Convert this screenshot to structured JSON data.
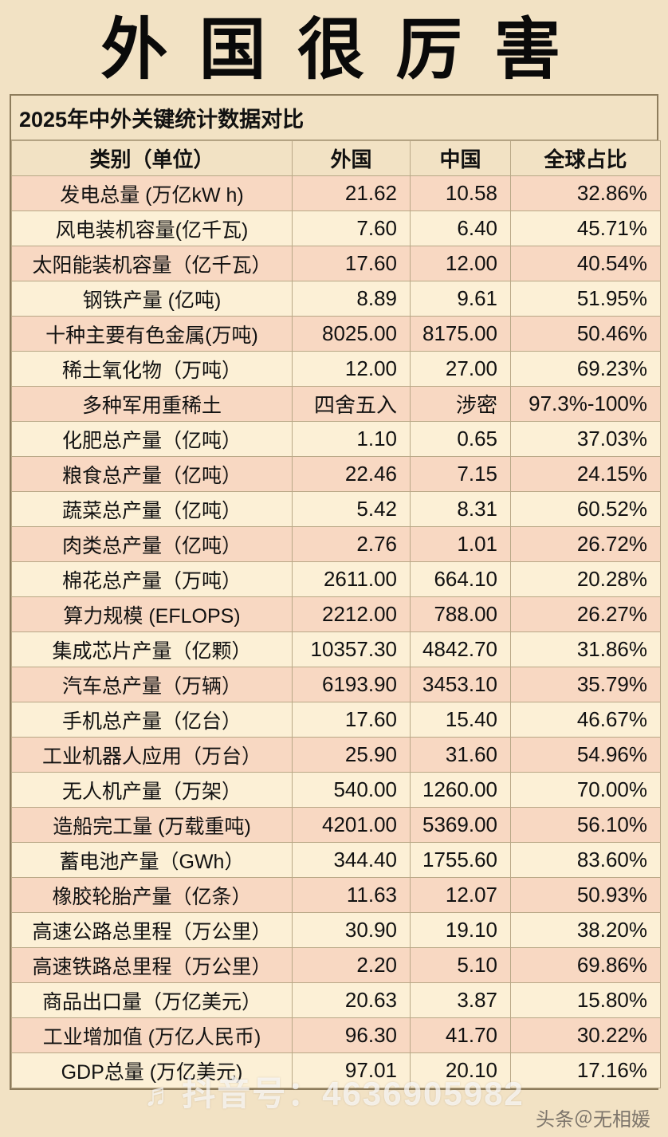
{
  "page": {
    "title": "外 国 很 厉 害"
  },
  "chart_data": {
    "type": "table",
    "title": "2025年中外关键统计数据对比",
    "columns": [
      "类别（单位）",
      "外国",
      "中国",
      "全球占比"
    ],
    "rows": [
      [
        "发电总量 (万亿kW h)",
        "21.62",
        "10.58",
        "32.86%"
      ],
      [
        "风电装机容量(亿千瓦)",
        "7.60",
        "6.40",
        "45.71%"
      ],
      [
        "太阳能装机容量（亿千瓦）",
        "17.60",
        "12.00",
        "40.54%"
      ],
      [
        "钢铁产量 (亿吨)",
        "8.89",
        "9.61",
        "51.95%"
      ],
      [
        "十种主要有色金属(万吨)",
        "8025.00",
        "8175.00",
        "50.46%"
      ],
      [
        "稀土氧化物（万吨）",
        "12.00",
        "27.00",
        "69.23%"
      ],
      [
        "多种军用重稀土",
        "四舍五入",
        "涉密",
        "97.3%-100%"
      ],
      [
        "化肥总产量（亿吨）",
        "1.10",
        "0.65",
        "37.03%"
      ],
      [
        "粮食总产量（亿吨）",
        "22.46",
        "7.15",
        "24.15%"
      ],
      [
        "蔬菜总产量（亿吨）",
        "5.42",
        "8.31",
        "60.52%"
      ],
      [
        "肉类总产量（亿吨）",
        "2.76",
        "1.01",
        "26.72%"
      ],
      [
        "棉花总产量（万吨）",
        "2611.00",
        "664.10",
        "20.28%"
      ],
      [
        "算力规模 (EFLOPS)",
        "2212.00",
        "788.00",
        "26.27%"
      ],
      [
        "集成芯片产量（亿颗）",
        "10357.30",
        "4842.70",
        "31.86%"
      ],
      [
        "汽车总产量（万辆）",
        "6193.90",
        "3453.10",
        "35.79%"
      ],
      [
        "手机总产量（亿台）",
        "17.60",
        "15.40",
        "46.67%"
      ],
      [
        "工业机器人应用（万台）",
        "25.90",
        "31.60",
        "54.96%"
      ],
      [
        "无人机产量（万架）",
        "540.00",
        "1260.00",
        "70.00%"
      ],
      [
        "造船完工量 (万载重吨)",
        "4201.00",
        "5369.00",
        "56.10%"
      ],
      [
        "蓄电池产量（GWh）",
        "344.40",
        "1755.60",
        "83.60%"
      ],
      [
        "橡胶轮胎产量（亿条）",
        "11.63",
        "12.07",
        "50.93%"
      ],
      [
        "高速公路总里程（万公里）",
        "30.90",
        "19.10",
        "38.20%"
      ],
      [
        "高速铁路总里程（万公里）",
        "2.20",
        "5.10",
        "69.86%"
      ],
      [
        "商品出口量（万亿美元）",
        "20.63",
        "3.87",
        "15.80%"
      ],
      [
        "工业增加值 (万亿人民币)",
        "96.30",
        "41.70",
        "30.22%"
      ],
      [
        "GDP总量 (万亿美元)",
        "97.01",
        "20.10",
        "17.16%"
      ]
    ]
  },
  "watermarks": {
    "douyin_text": "抖音号：4636905982",
    "toutiao_text": "头条＠无相媛"
  },
  "icons": {
    "music_note": "♬"
  },
  "colors": {
    "background": "#f2e2c4",
    "row_pink": "#f8d8c2",
    "row_cream": "#fcf0d6",
    "border": "#b9a887",
    "text": "#111111"
  }
}
